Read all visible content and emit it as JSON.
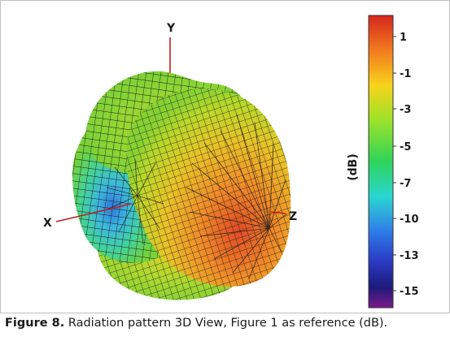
{
  "figure": {
    "caption_label": "Figure 8.",
    "caption_text": " Radiation pattern 3D View, Figure 1 as reference (dB)."
  },
  "axes": {
    "x_label": "X",
    "y_label": "Y",
    "z_label": "Z"
  },
  "colorbar": {
    "unit": "(dB)",
    "tick_labels": [
      "1",
      "-1",
      "-3",
      "-5",
      "-7",
      "-10",
      "-13",
      "-15"
    ],
    "colors": [
      "#d7261e",
      "#f27b1f",
      "#f7d31b",
      "#9be22a",
      "#2fd45a",
      "#2ad6d1",
      "#2f7be8",
      "#2a3bc4",
      "#1c1a7a",
      "#7a1a8a"
    ]
  },
  "colors": {
    "surface_green": "#7ed33a",
    "surface_yellow": "#d9d52a",
    "surface_orange": "#f29a2a",
    "surface_red": "#e2552a",
    "surface_cyan": "#39c9d8",
    "surface_blue": "#2f7ad8",
    "axis_red": "#c0201c",
    "mesh": "#1a1a1a"
  }
}
